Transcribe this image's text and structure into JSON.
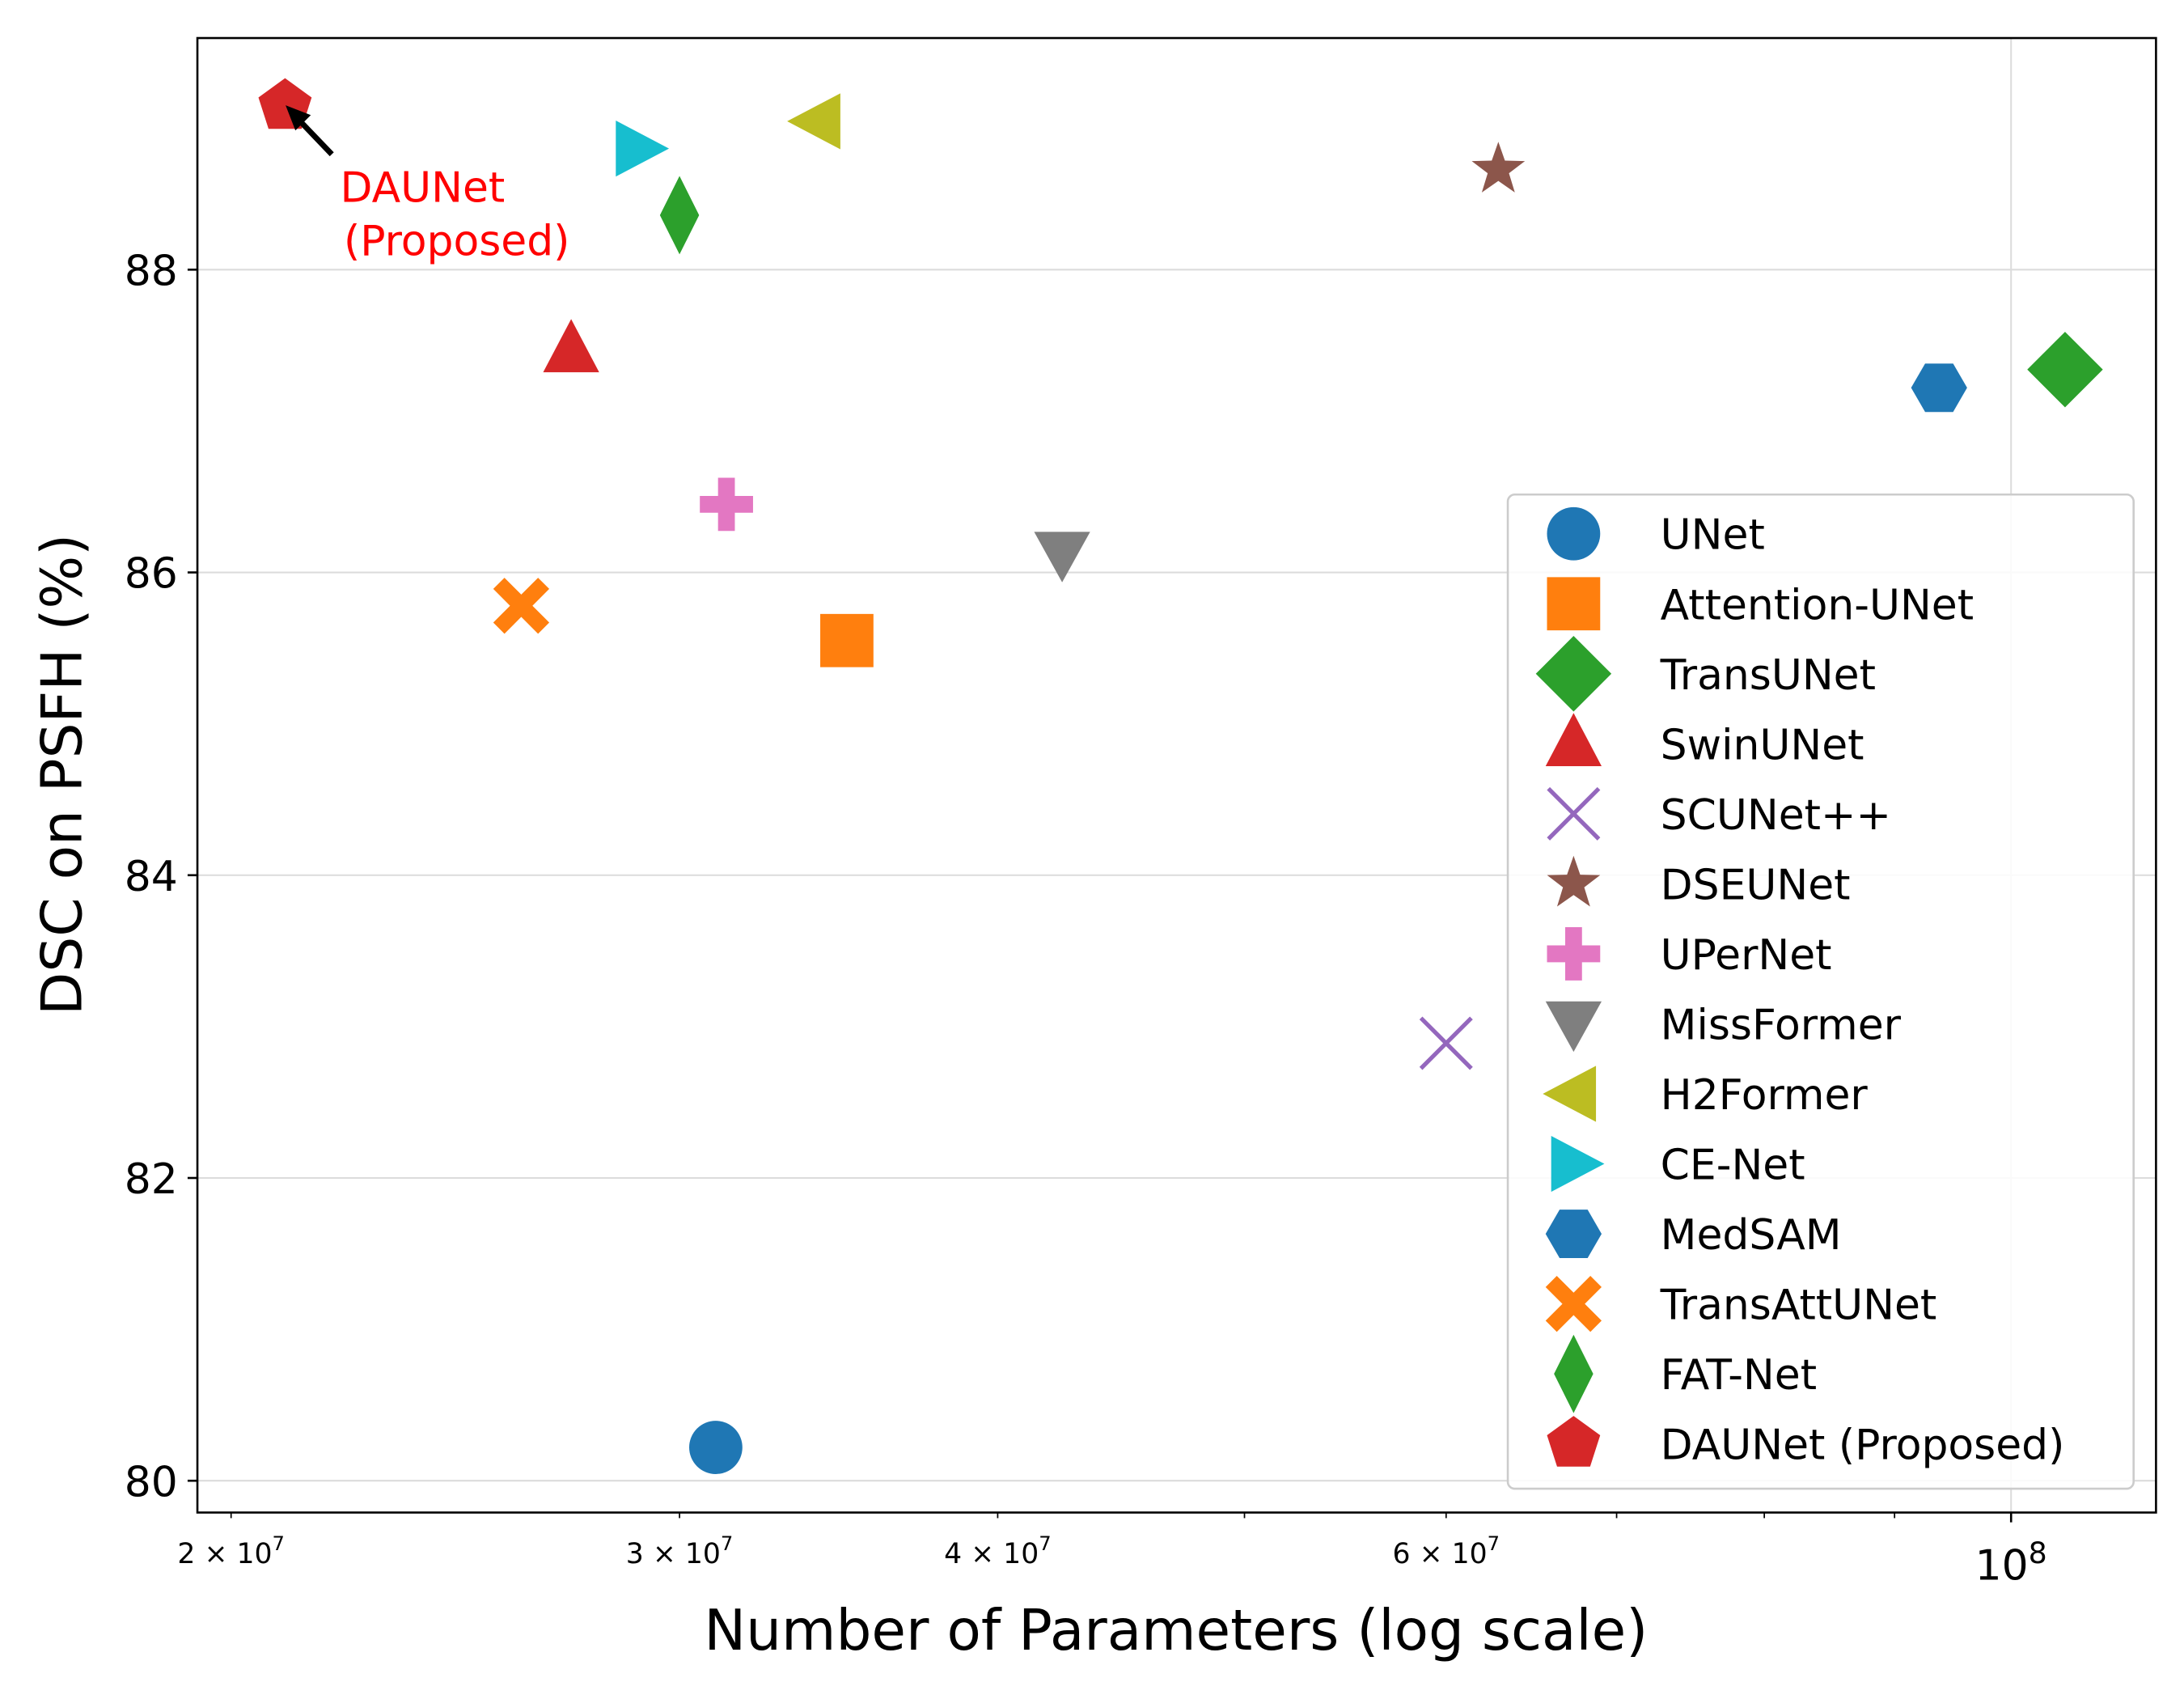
{
  "chart_data": {
    "type": "scatter",
    "xlabel": "Number of Parameters (log scale)",
    "ylabel": "DSC on PSFH (%)",
    "xscale": "log",
    "xlim": [
      19400000,
      114000000
    ],
    "ylim": [
      79.79,
      89.53
    ],
    "grid": true,
    "legend_position": "center-right",
    "xticks": [
      {
        "value": 20000000,
        "label": "2×10^7",
        "base": "2 × 10",
        "exp": "7"
      },
      {
        "value": 30000000,
        "label": "3×10^7",
        "base": "3 × 10",
        "exp": "7"
      },
      {
        "value": 40000000,
        "label": "4×10^7",
        "base": "4 × 10",
        "exp": "7"
      },
      {
        "value": 60000000,
        "label": "6×10^7",
        "base": "6 × 10",
        "exp": "7"
      },
      {
        "value": 100000000,
        "label": "10^8",
        "base": "10",
        "exp": "8"
      }
    ],
    "yticks": [
      80,
      82,
      84,
      86,
      88
    ],
    "series": [
      {
        "name": "UNet",
        "x": 31000000,
        "y": 80.22,
        "marker": "circle",
        "color": "#1f77b4"
      },
      {
        "name": "Attention-UNet",
        "x": 34900000,
        "y": 85.55,
        "marker": "square",
        "color": "#ff7f0e"
      },
      {
        "name": "TransUNet",
        "x": 105000000,
        "y": 87.34,
        "marker": "diamond",
        "color": "#2ca02c"
      },
      {
        "name": "SwinUNet",
        "x": 27200000,
        "y": 87.47,
        "marker": "triangle-up",
        "color": "#d62728"
      },
      {
        "name": "SCUNet++",
        "x": 60000000,
        "y": 82.89,
        "marker": "x",
        "color": "#9467bd"
      },
      {
        "name": "DSEUNet",
        "x": 62900000,
        "y": 88.66,
        "marker": "star",
        "color": "#8c564b"
      },
      {
        "name": "UPerNet",
        "x": 31300000,
        "y": 86.45,
        "marker": "plus-filled",
        "color": "#e377c2"
      },
      {
        "name": "MissFormer",
        "x": 42400000,
        "y": 86.12,
        "marker": "triangle-down",
        "color": "#7f7f7f"
      },
      {
        "name": "H2Former",
        "x": 34000000,
        "y": 88.98,
        "marker": "triangle-left",
        "color": "#bcbd22"
      },
      {
        "name": "CE-Net",
        "x": 28900000,
        "y": 88.8,
        "marker": "triangle-right",
        "color": "#17becf"
      },
      {
        "name": "MedSAM",
        "x": 93700000,
        "y": 87.22,
        "marker": "hexagon",
        "color": "#1f77b4"
      },
      {
        "name": "TransAttUNet",
        "x": 26000000,
        "y": 85.78,
        "marker": "x-filled",
        "color": "#ff7f0e"
      },
      {
        "name": "FAT-Net",
        "x": 30000000,
        "y": 88.36,
        "marker": "thin-diamond",
        "color": "#2ca02c"
      },
      {
        "name": "DAUNet (Proposed)",
        "x": 21000000,
        "y": 89.08,
        "marker": "pentagon",
        "color": "#d62728"
      }
    ],
    "annotation": {
      "line1": "DAUNet",
      "line2": " (Proposed)",
      "color": "#ff0000",
      "target": "DAUNet (Proposed)"
    }
  }
}
